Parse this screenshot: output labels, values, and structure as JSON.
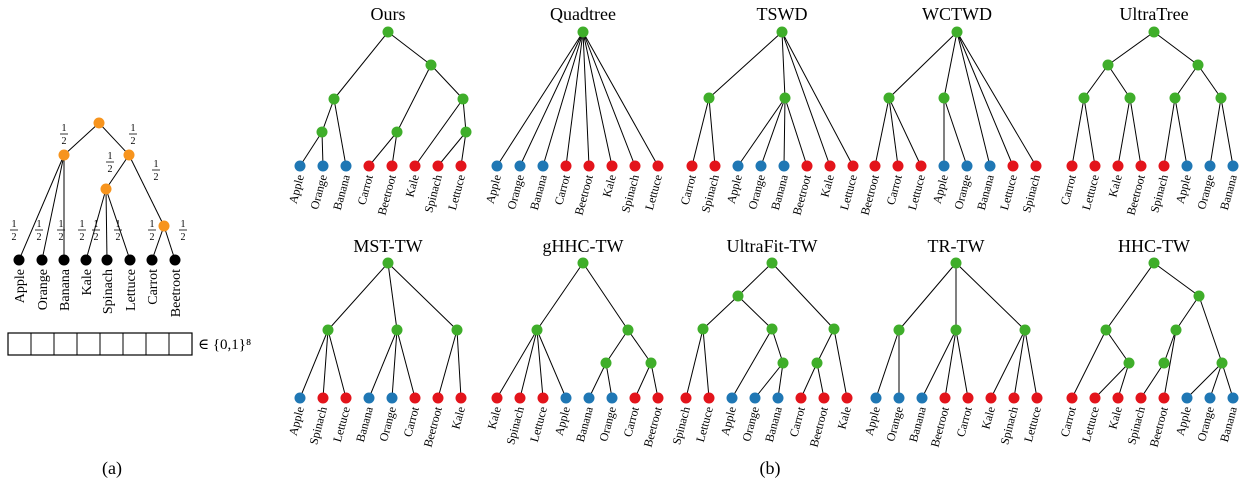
{
  "colors": {
    "internal_a": "#f7941d",
    "leaf_a": "#000000",
    "green": "#3fae2a",
    "blue": "#1f77b4",
    "red": "#e3141b",
    "edge": "#000000"
  },
  "panel_a": {
    "label": "(a)",
    "edge_weight": "1/2",
    "leaves": [
      "Apple",
      "Orange",
      "Banana",
      "Kale",
      "Spinach",
      "Lettuce",
      "Carrot",
      "Beetroot"
    ],
    "vector_label": "∈ {0,1}⁸"
  },
  "panel_b": {
    "label": "(b)",
    "trees": [
      {
        "title": "Ours",
        "leaves": [
          [
            "Apple",
            "blue"
          ],
          [
            "Orange",
            "blue"
          ],
          [
            "Banana",
            "blue"
          ],
          [
            "Carrot",
            "red"
          ],
          [
            "Beetroot",
            "red"
          ],
          [
            "Kale",
            "red"
          ],
          [
            "Spinach",
            "red"
          ],
          [
            "Lettuce",
            "red"
          ]
        ]
      },
      {
        "title": "Quadtree",
        "leaves": [
          [
            "Apple",
            "blue"
          ],
          [
            "Orange",
            "blue"
          ],
          [
            "Banana",
            "blue"
          ],
          [
            "Carrot",
            "red"
          ],
          [
            "Beetroot",
            "red"
          ],
          [
            "Kale",
            "red"
          ],
          [
            "Spinach",
            "red"
          ],
          [
            "Lettuce",
            "red"
          ]
        ]
      },
      {
        "title": "TSWD",
        "leaves": [
          [
            "Carrot",
            "red"
          ],
          [
            "Spinach",
            "red"
          ],
          [
            "Apple",
            "blue"
          ],
          [
            "Orange",
            "blue"
          ],
          [
            "Banana",
            "blue"
          ],
          [
            "Beetroot",
            "red"
          ],
          [
            "Kale",
            "red"
          ],
          [
            "Lettuce",
            "red"
          ]
        ]
      },
      {
        "title": "WCTWD",
        "leaves": [
          [
            "Beetroot",
            "red"
          ],
          [
            "Carrot",
            "red"
          ],
          [
            "Lettuce",
            "red"
          ],
          [
            "Apple",
            "blue"
          ],
          [
            "Orange",
            "blue"
          ],
          [
            "Banana",
            "blue"
          ],
          [
            "Lettuce",
            "red"
          ],
          [
            "Spinach",
            "red"
          ]
        ]
      },
      {
        "title": "UltraTree",
        "leaves": [
          [
            "Carrot",
            "red"
          ],
          [
            "Lettuce",
            "red"
          ],
          [
            "Kale",
            "red"
          ],
          [
            "Beetroot",
            "red"
          ],
          [
            "Spinach",
            "red"
          ],
          [
            "Apple",
            "blue"
          ],
          [
            "Orange",
            "blue"
          ],
          [
            "Banana",
            "blue"
          ]
        ]
      },
      {
        "title": "MST-TW",
        "leaves": [
          [
            "Apple",
            "blue"
          ],
          [
            "Spinach",
            "red"
          ],
          [
            "Lettuce",
            "red"
          ],
          [
            "Banana",
            "blue"
          ],
          [
            "Orange",
            "blue"
          ],
          [
            "Carrot",
            "red"
          ],
          [
            "Beetroot",
            "red"
          ],
          [
            "Kale",
            "red"
          ]
        ]
      },
      {
        "title": "gHHC-TW",
        "leaves": [
          [
            "Kale",
            "red"
          ],
          [
            "Spinach",
            "red"
          ],
          [
            "Lettuce",
            "red"
          ],
          [
            "Apple",
            "blue"
          ],
          [
            "Banana",
            "blue"
          ],
          [
            "Orange",
            "blue"
          ],
          [
            "Carrot",
            "red"
          ],
          [
            "Beetroot",
            "red"
          ]
        ]
      },
      {
        "title": "UltraFit-TW",
        "leaves": [
          [
            "Spinach",
            "red"
          ],
          [
            "Lettuce",
            "red"
          ],
          [
            "Apple",
            "blue"
          ],
          [
            "Orange",
            "blue"
          ],
          [
            "Banana",
            "blue"
          ],
          [
            "Carrot",
            "red"
          ],
          [
            "Beetroot",
            "red"
          ],
          [
            "Kale",
            "red"
          ]
        ]
      },
      {
        "title": "TR-TW",
        "leaves": [
          [
            "Apple",
            "blue"
          ],
          [
            "Orange",
            "blue"
          ],
          [
            "Banana",
            "blue"
          ],
          [
            "Beetroot",
            "red"
          ],
          [
            "Carrot",
            "red"
          ],
          [
            "Kale",
            "red"
          ],
          [
            "Spinach",
            "red"
          ],
          [
            "Lettuce",
            "red"
          ]
        ]
      },
      {
        "title": "HHC-TW",
        "leaves": [
          [
            "Carrot",
            "red"
          ],
          [
            "Lettuce",
            "red"
          ],
          [
            "Kale",
            "red"
          ],
          [
            "Spinach",
            "red"
          ],
          [
            "Beetroot",
            "red"
          ],
          [
            "Apple",
            "blue"
          ],
          [
            "Orange",
            "blue"
          ],
          [
            "Banana",
            "blue"
          ]
        ]
      }
    ]
  }
}
